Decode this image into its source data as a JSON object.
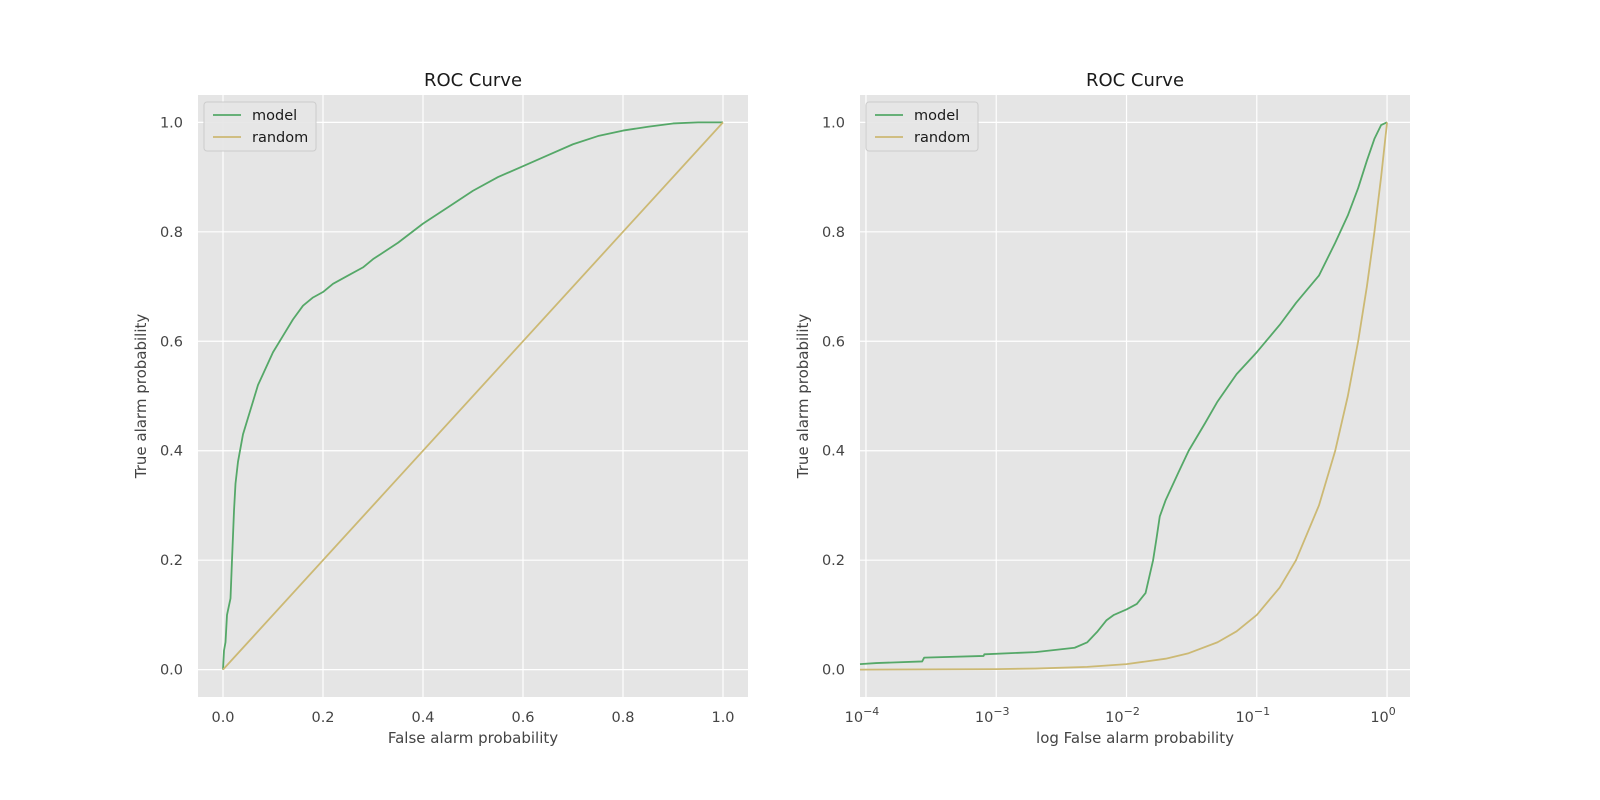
{
  "colors": {
    "model": "#55a868",
    "random": "#ccb974",
    "plot_background": "#e5e5e5",
    "grid": "#ffffff"
  },
  "chart_data": [
    {
      "type": "line",
      "title": "ROC Curve",
      "xlabel": "False alarm probability",
      "ylabel": "True alarm probability",
      "xscale": "linear",
      "xlim": [
        -0.05,
        1.05
      ],
      "ylim": [
        -0.05,
        1.05
      ],
      "grid": true,
      "legend_position": "upper left",
      "xticks": [
        0.0,
        0.2,
        0.4,
        0.6,
        0.8,
        1.0
      ],
      "xtick_labels": [
        "0.0",
        "0.2",
        "0.4",
        "0.6",
        "0.8",
        "1.0"
      ],
      "yticks": [
        0.0,
        0.2,
        0.4,
        0.6,
        0.8,
        1.0
      ],
      "ytick_labels": [
        "0.0",
        "0.2",
        "0.4",
        "0.6",
        "0.8",
        "1.0"
      ],
      "series": [
        {
          "name": "model",
          "color": "#55a868",
          "x": [
            0.0,
            0.002,
            0.005,
            0.008,
            0.015,
            0.018,
            0.022,
            0.025,
            0.03,
            0.04,
            0.05,
            0.06,
            0.07,
            0.08,
            0.1,
            0.12,
            0.14,
            0.16,
            0.18,
            0.2,
            0.22,
            0.25,
            0.28,
            0.3,
            0.35,
            0.4,
            0.45,
            0.5,
            0.55,
            0.6,
            0.65,
            0.7,
            0.75,
            0.8,
            0.85,
            0.9,
            0.95,
            1.0
          ],
          "y": [
            0.0,
            0.035,
            0.05,
            0.1,
            0.13,
            0.2,
            0.29,
            0.34,
            0.38,
            0.43,
            0.46,
            0.49,
            0.52,
            0.54,
            0.58,
            0.61,
            0.64,
            0.665,
            0.68,
            0.69,
            0.705,
            0.72,
            0.735,
            0.75,
            0.78,
            0.815,
            0.845,
            0.875,
            0.9,
            0.92,
            0.94,
            0.96,
            0.975,
            0.985,
            0.992,
            0.998,
            1.0,
            1.0
          ]
        },
        {
          "name": "random",
          "color": "#ccb974",
          "x": [
            0.0,
            1.0
          ],
          "y": [
            0.0,
            1.0
          ]
        }
      ]
    },
    {
      "type": "line",
      "title": "ROC Curve",
      "xlabel": "log False alarm probability",
      "ylabel": "True alarm probability",
      "xscale": "log",
      "xlim": [
        9e-05,
        1.5
      ],
      "ylim": [
        -0.05,
        1.05
      ],
      "grid": true,
      "legend_position": "upper left",
      "xticks": [
        0.0001,
        0.001,
        0.01,
        0.1,
        1
      ],
      "xtick_labels": [
        "10",
        "10",
        "10",
        "10",
        "10"
      ],
      "xtick_exponents": [
        "−4",
        "−3",
        "−2",
        "−1",
        "0"
      ],
      "yticks": [
        0.0,
        0.2,
        0.4,
        0.6,
        0.8,
        1.0
      ],
      "ytick_labels": [
        "0.0",
        "0.2",
        "0.4",
        "0.6",
        "0.8",
        "1.0"
      ],
      "series": [
        {
          "name": "model",
          "color": "#55a868",
          "x": [
            9e-05,
            0.00012,
            0.00027,
            0.00028,
            0.0008,
            0.00081,
            0.002,
            0.004,
            0.005,
            0.006,
            0.007,
            0.008,
            0.01,
            0.012,
            0.014,
            0.016,
            0.017,
            0.018,
            0.02,
            0.025,
            0.03,
            0.04,
            0.05,
            0.07,
            0.1,
            0.15,
            0.2,
            0.3,
            0.4,
            0.5,
            0.6,
            0.7,
            0.8,
            0.9,
            1.0
          ],
          "y": [
            0.01,
            0.012,
            0.015,
            0.022,
            0.025,
            0.028,
            0.032,
            0.04,
            0.05,
            0.07,
            0.09,
            0.1,
            0.11,
            0.12,
            0.14,
            0.2,
            0.24,
            0.28,
            0.31,
            0.36,
            0.4,
            0.45,
            0.49,
            0.54,
            0.58,
            0.63,
            0.67,
            0.72,
            0.78,
            0.83,
            0.88,
            0.93,
            0.97,
            0.995,
            1.0
          ]
        },
        {
          "name": "random",
          "color": "#ccb974",
          "x": [
            9e-05,
            0.001,
            0.002,
            0.005,
            0.01,
            0.02,
            0.03,
            0.05,
            0.07,
            0.1,
            0.15,
            0.2,
            0.3,
            0.4,
            0.5,
            0.6,
            0.7,
            0.8,
            0.9,
            1.0
          ],
          "y": [
            9e-05,
            0.001,
            0.002,
            0.005,
            0.01,
            0.02,
            0.03,
            0.05,
            0.07,
            0.1,
            0.15,
            0.2,
            0.3,
            0.4,
            0.5,
            0.6,
            0.7,
            0.8,
            0.9,
            1.0
          ]
        }
      ]
    }
  ]
}
